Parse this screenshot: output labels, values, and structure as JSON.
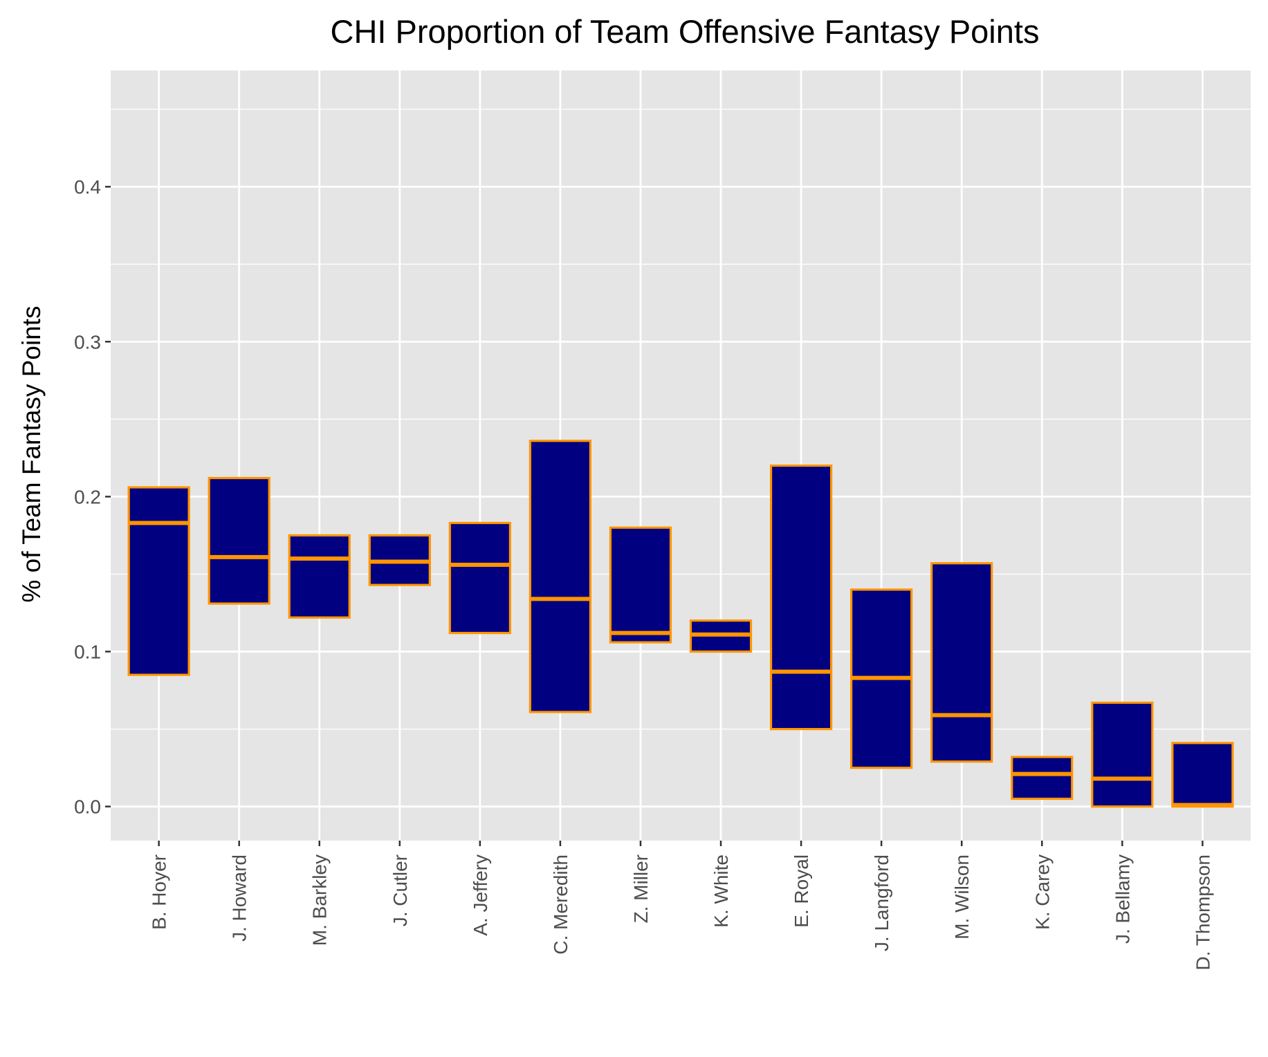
{
  "chart_data": {
    "type": "boxplot",
    "title": "CHI Proportion of Team Offensive Fantasy Points",
    "xlabel": "",
    "ylabel": "% of Team Fantasy Points",
    "ylim": [
      -0.022,
      0.475
    ],
    "yticks": [
      0.0,
      0.1,
      0.2,
      0.3,
      0.4
    ],
    "ytick_labels": [
      "0.0",
      "0.1",
      "0.2",
      "0.3",
      "0.4"
    ],
    "grid": true,
    "legend": "none",
    "colors": {
      "panel": "#e5e5e5",
      "grid": "#ffffff",
      "box_fill": "#000080",
      "box_outline": "#ff9500",
      "tick_text": "#4d4d4d",
      "tick_mark": "#333333"
    },
    "categories": [
      "B. Hoyer",
      "J. Howard",
      "M. Barkley",
      "J. Cutler",
      "A. Jeffery",
      "C. Meredith",
      "Z. Miller",
      "K. White",
      "E. Royal",
      "J. Langford",
      "M. Wilson",
      "K. Carey",
      "J. Bellamy",
      "D. Thompson"
    ],
    "boxes": [
      {
        "q1": 0.085,
        "median": 0.183,
        "q3": 0.206
      },
      {
        "q1": 0.131,
        "median": 0.161,
        "q3": 0.212
      },
      {
        "q1": 0.122,
        "median": 0.16,
        "q3": 0.175
      },
      {
        "q1": 0.143,
        "median": 0.158,
        "q3": 0.175
      },
      {
        "q1": 0.112,
        "median": 0.156,
        "q3": 0.183
      },
      {
        "q1": 0.061,
        "median": 0.134,
        "q3": 0.236
      },
      {
        "q1": 0.106,
        "median": 0.112,
        "q3": 0.18
      },
      {
        "q1": 0.1,
        "median": 0.111,
        "q3": 0.12
      },
      {
        "q1": 0.05,
        "median": 0.087,
        "q3": 0.22
      },
      {
        "q1": 0.025,
        "median": 0.083,
        "q3": 0.14
      },
      {
        "q1": 0.029,
        "median": 0.059,
        "q3": 0.157
      },
      {
        "q1": 0.005,
        "median": 0.021,
        "q3": 0.032
      },
      {
        "q1": 0.0,
        "median": 0.018,
        "q3": 0.067
      },
      {
        "q1": 0.0,
        "median": 0.001,
        "q3": 0.041
      }
    ]
  }
}
